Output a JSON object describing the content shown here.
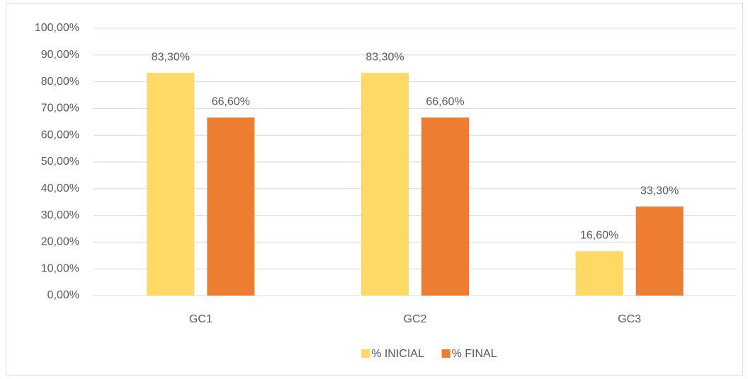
{
  "chart_data": {
    "type": "bar",
    "categories": [
      "GC1",
      "GC2",
      "GC3"
    ],
    "series": [
      {
        "name": "% INICIAL",
        "color": "#FFD966",
        "values": [
          83.3,
          83.3,
          16.6
        ],
        "value_labels": [
          "83,30%",
          "83,30%",
          "16,60%"
        ]
      },
      {
        "name": "% FINAL",
        "color": "#ED7D31",
        "values": [
          66.6,
          66.6,
          33.3
        ],
        "value_labels": [
          "66,60%",
          "66,60%",
          "33,30%"
        ]
      }
    ],
    "ylim": [
      0,
      100
    ],
    "yticks": [
      {
        "value": 0,
        "label": "0,00%"
      },
      {
        "value": 10,
        "label": "10,00%"
      },
      {
        "value": 20,
        "label": "20,00%"
      },
      {
        "value": 30,
        "label": "30,00%"
      },
      {
        "value": 40,
        "label": "40,00%"
      },
      {
        "value": 50,
        "label": "50,00%"
      },
      {
        "value": 60,
        "label": "60,00%"
      },
      {
        "value": 70,
        "label": "70,00%"
      },
      {
        "value": 80,
        "label": "80,00%"
      },
      {
        "value": 90,
        "label": "90,00%"
      },
      {
        "value": 100,
        "label": "100,00%"
      }
    ],
    "grid": true,
    "legend": "bottom"
  }
}
